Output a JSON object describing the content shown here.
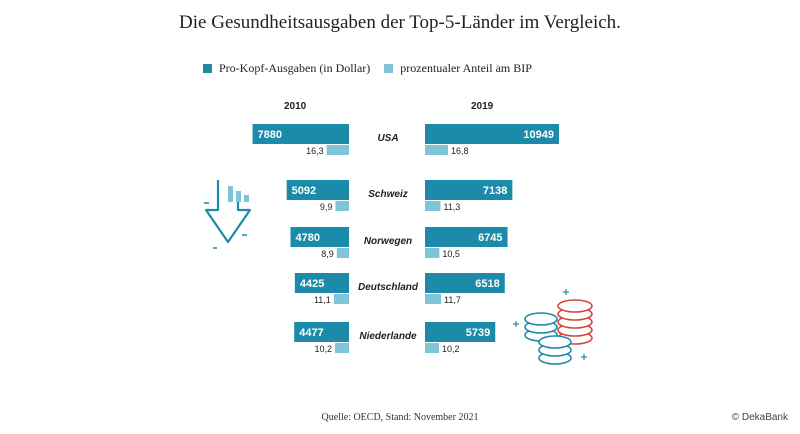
{
  "colors": {
    "primary": "#1b8ba9",
    "secondary": "#7fc4d8",
    "accent_red": "#d9443a"
  },
  "chart_data": {
    "type": "bar",
    "title": "Die Gesundheitsausgaben der Top-5-Länder im Vergleich.",
    "legend": [
      {
        "label": "Pro-Kopf-Ausgaben (in Dollar)",
        "color": "#1b8ba9"
      },
      {
        "label": "prozentualer Anteil am BIP",
        "color": "#7fc4d8"
      }
    ],
    "years": [
      "2010",
      "2019"
    ],
    "categories": [
      "USA",
      "Schweiz",
      "Norwegen",
      "Deutschland",
      "Niederlande"
    ],
    "series": [
      {
        "name": "Pro-Kopf-Ausgaben (in Dollar)",
        "year": "2010",
        "values": [
          7880,
          5092,
          4780,
          4425,
          4477
        ]
      },
      {
        "name": "prozentualer Anteil am BIP",
        "year": "2010",
        "values": [
          16.3,
          9.9,
          8.9,
          11.1,
          10.2
        ]
      },
      {
        "name": "Pro-Kopf-Ausgaben (in Dollar)",
        "year": "2019",
        "values": [
          10949,
          7138,
          6745,
          6518,
          5739
        ]
      },
      {
        "name": "prozentualer Anteil am BIP",
        "year": "2019",
        "values": [
          16.8,
          11.3,
          10.5,
          11.7,
          10.2
        ]
      }
    ],
    "value_labels": {
      "2010": {
        "spend": [
          "7880",
          "5092",
          "4780",
          "4425",
          "4477"
        ],
        "gdp": [
          "16,3",
          "9,9",
          "8,9",
          "11,1",
          "10,2"
        ]
      },
      "2019": {
        "spend": [
          "10949",
          "7138",
          "6745",
          "6518",
          "5739"
        ],
        "gdp": [
          "16,8",
          "11,3",
          "10,5",
          "11,7",
          "10,2"
        ]
      }
    }
  },
  "footer": {
    "source": "Quelle: OECD, Stand: November 2021",
    "copyright": "© DekaBank"
  },
  "icons": {
    "left": "down-arrow-chart-icon",
    "right": "coin-stacks-icon"
  }
}
